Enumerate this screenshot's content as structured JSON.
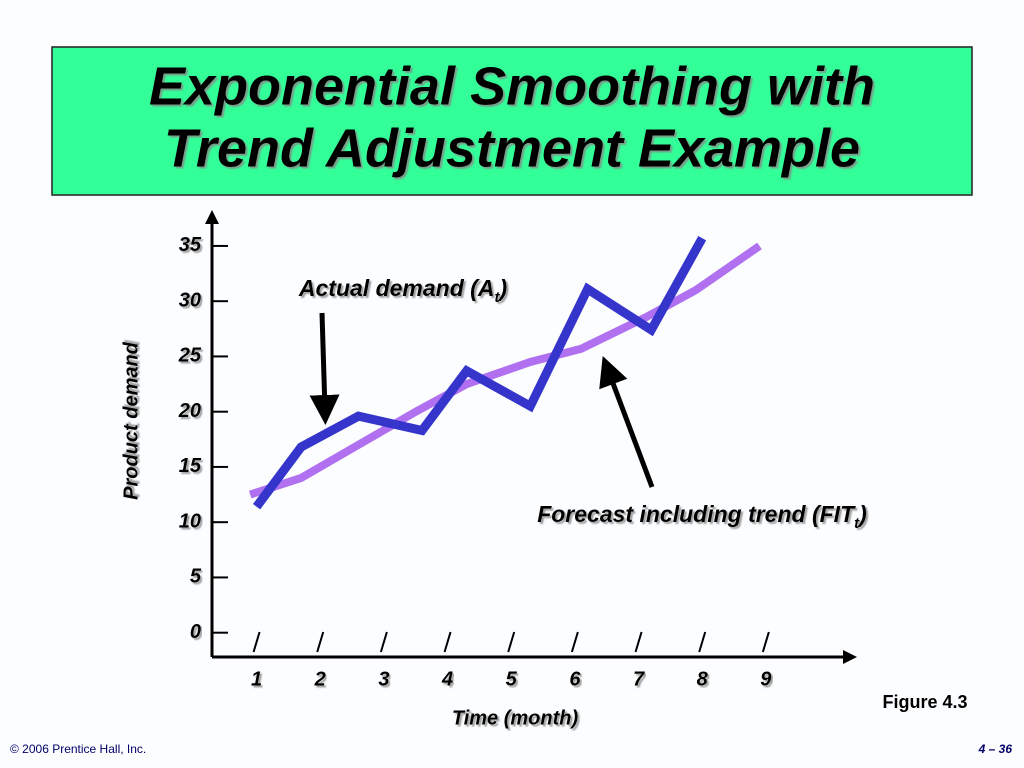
{
  "title": [
    "Exponential Smoothing with",
    "Trend Adjustment Example"
  ],
  "chart_data": {
    "type": "line",
    "xlabel": "Time (month)",
    "ylabel": "Product demand",
    "xlim": [
      0.3,
      10.4
    ],
    "xticks": [
      1,
      2,
      3,
      4,
      5,
      6,
      7,
      8,
      9
    ],
    "ylim": [
      -2.2,
      37.8
    ],
    "yticks": [
      0,
      5,
      10,
      15,
      20,
      25,
      30,
      35
    ],
    "series": [
      {
        "color": "#b070f0",
        "x": [
          0.9,
          1.7,
          2.6,
          3.5,
          4.3,
          5.3,
          6.1,
          7.1,
          7.9,
          8.9
        ],
        "values": [
          12.5,
          14,
          17,
          20,
          22.5,
          24.5,
          25.7,
          28.5,
          31,
          35
        ]
      },
      {
        "color": "#3535cc",
        "x": [
          1,
          1.7,
          2.6,
          3.6,
          4.3,
          5.3,
          6.2,
          7.2,
          8
        ],
        "values": [
          11.4,
          16.8,
          19.6,
          18.3,
          23.7,
          20.5,
          31.1,
          27.4,
          35.7
        ]
      }
    ],
    "annotations": [
      {
        "parts": [
          "Actual demand (",
          "A",
          "t",
          ")"
        ]
      },
      {
        "parts": [
          "Forecast including trend (",
          "FIT",
          "t",
          ")"
        ]
      }
    ]
  },
  "figure": "Figure 4.3",
  "footer": {
    "left": "© 2006 Prentice Hall, Inc.",
    "right": "4 – 36"
  }
}
